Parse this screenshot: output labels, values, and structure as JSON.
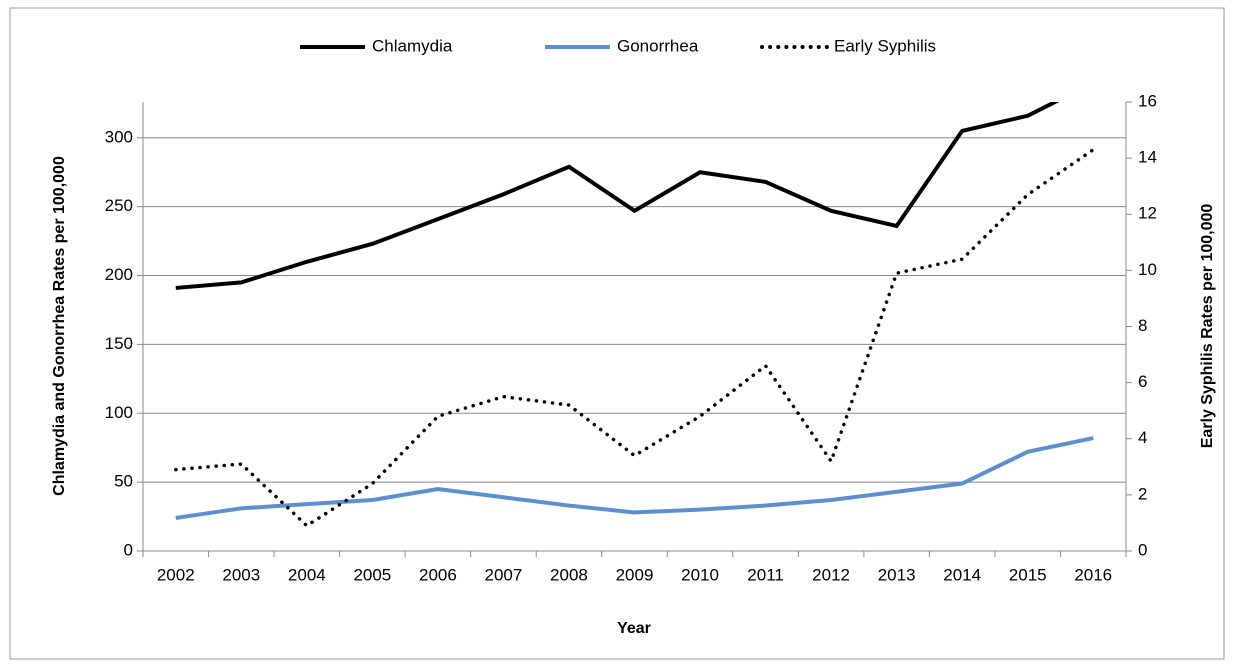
{
  "chart_data": {
    "type": "line",
    "x_label": "Year",
    "y_label": "Chlamydia and Gonorrhea Rates per 100,000",
    "y2_label": "Early Syphilis Rates per 100,000",
    "categories": [
      "2002",
      "2003",
      "2004",
      "2005",
      "2006",
      "2007",
      "2008",
      "2009",
      "2010",
      "2011",
      "2012",
      "2013",
      "2014",
      "2015",
      "2016"
    ],
    "series": [
      {
        "name": "Chlamydia",
        "color": "#000000",
        "style": "solid",
        "values": [
          191,
          195,
          210,
          223,
          241,
          259,
          279,
          247,
          275,
          268,
          247,
          236,
          305,
          316,
          340
        ]
      },
      {
        "name": "Gonorrhea",
        "color": "#5b8fd0",
        "style": "solid",
        "values": [
          24,
          31,
          34,
          37,
          45,
          39,
          33,
          28,
          30,
          33,
          37,
          43,
          49,
          72,
          82
        ]
      },
      {
        "name": "Early Syphilis",
        "color": "#000000",
        "style": "dotted",
        "axis": "y2",
        "values": [
          2.9,
          3.1,
          0.9,
          2.4,
          4.8,
          5.5,
          5.2,
          3.4,
          4.8,
          6.6,
          3.2,
          9.9,
          10.4,
          12.7,
          14.3
        ]
      }
    ],
    "ylim": [
      0,
      326
    ],
    "yticks": [
      0,
      50,
      100,
      150,
      200,
      250,
      300
    ],
    "y2lim": [
      0,
      16
    ],
    "y2ticks": [
      0,
      2,
      4,
      6,
      8,
      10,
      12,
      14,
      16
    ],
    "grid": true,
    "legend": "top"
  }
}
